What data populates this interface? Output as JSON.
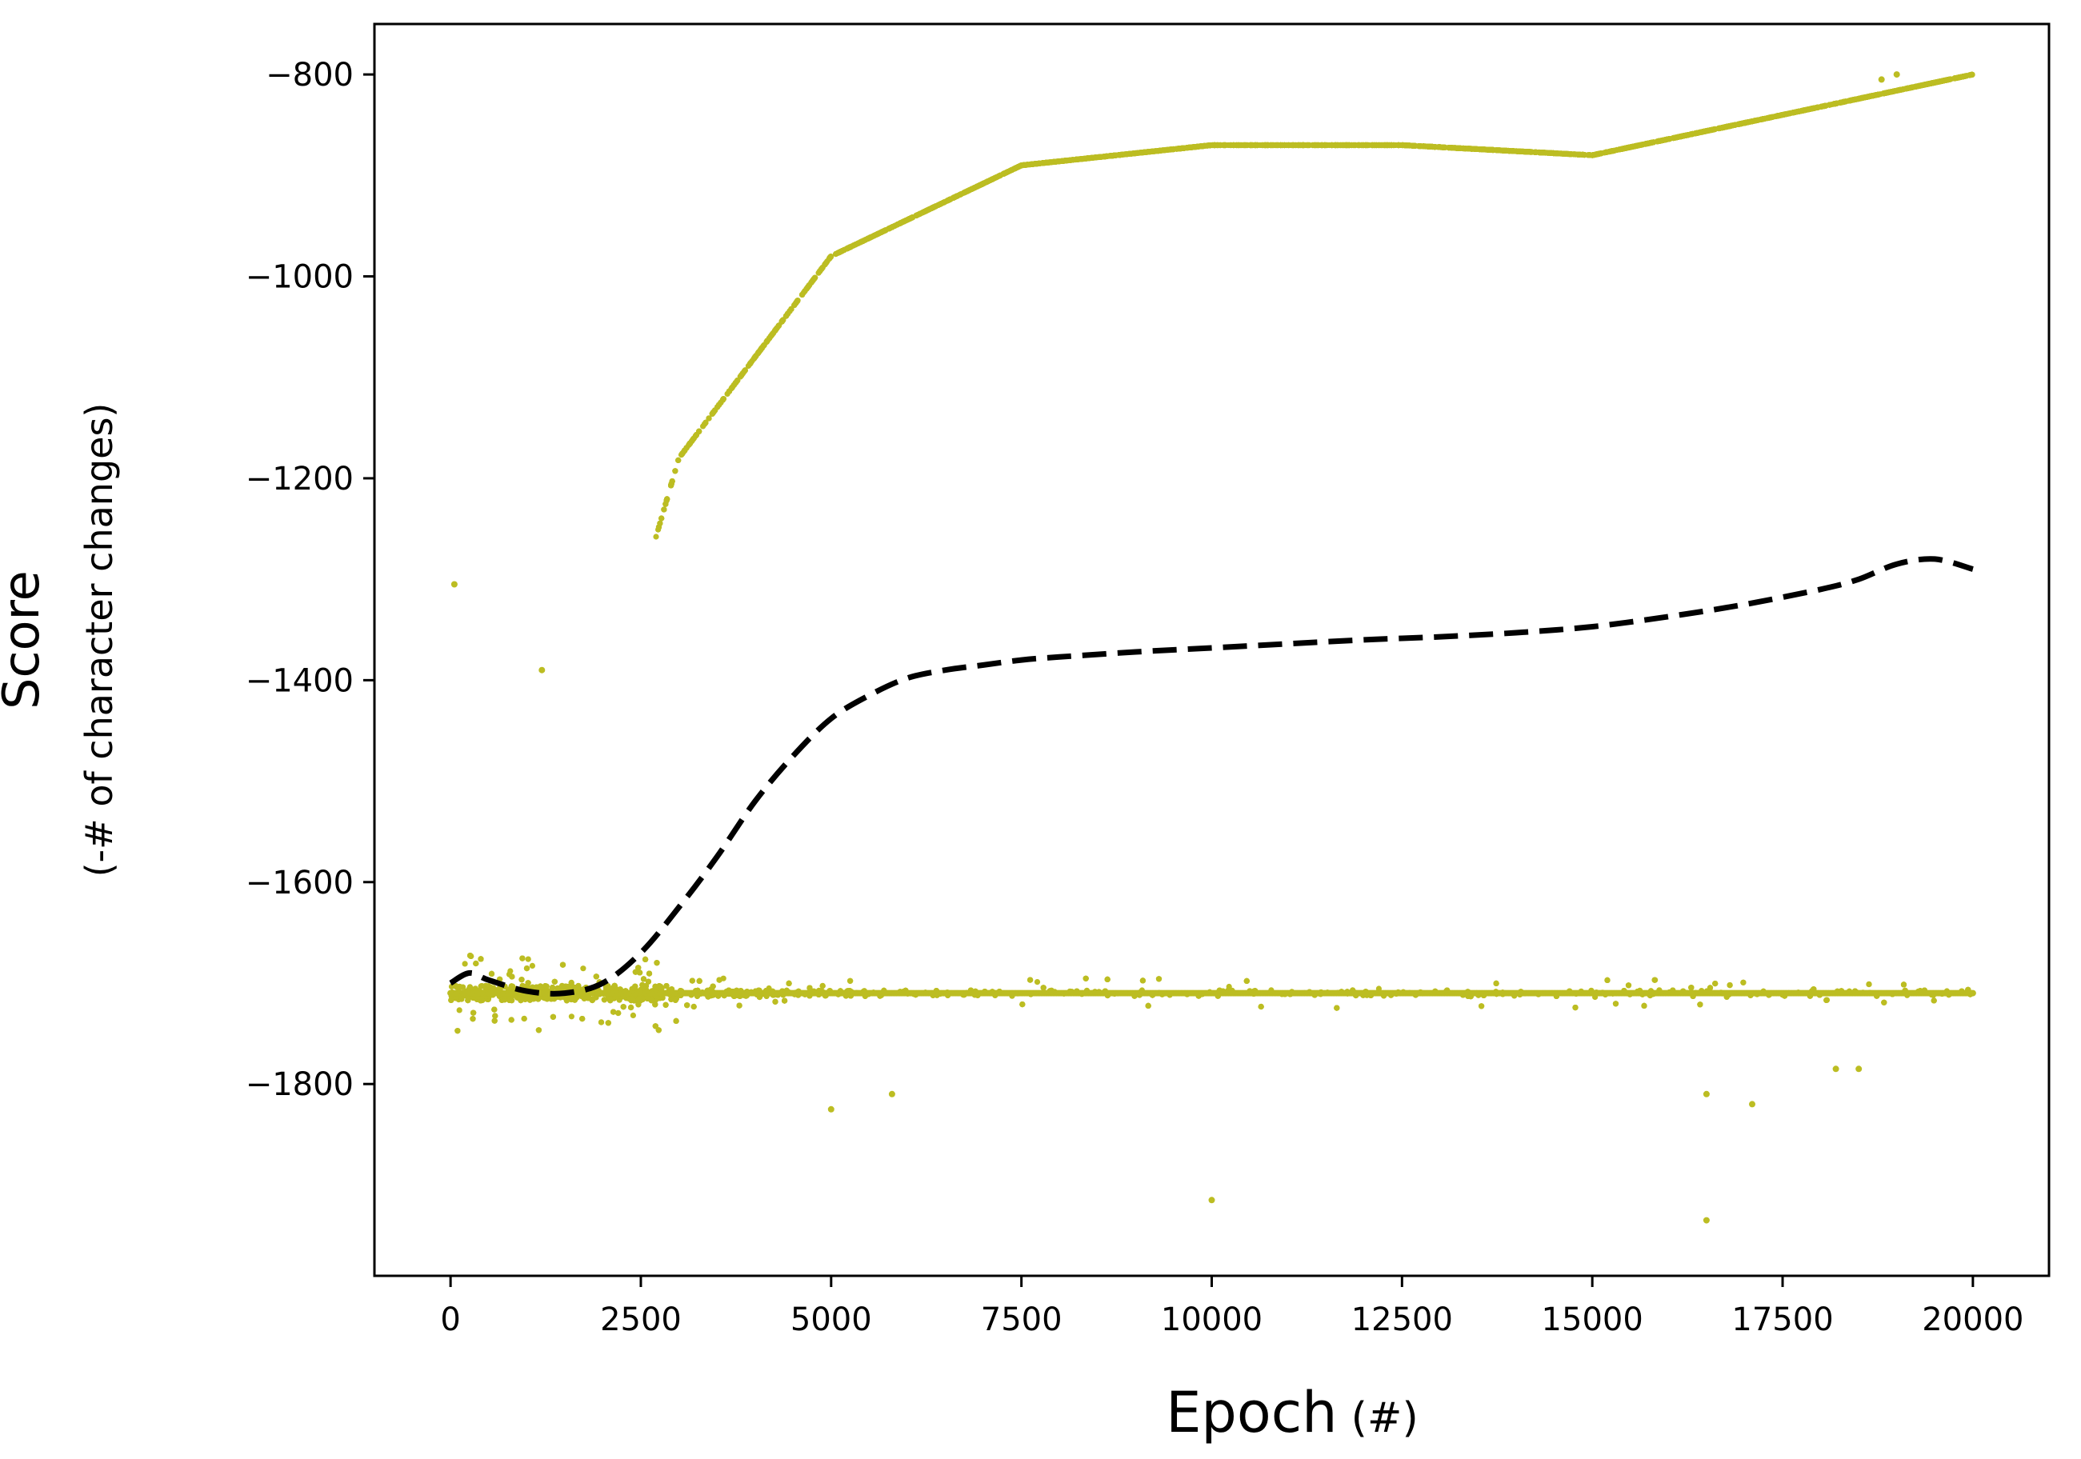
{
  "chart_data": {
    "type": "scatter",
    "xlabel": "Epoch",
    "xlabel_unit": "(#)",
    "ylabel": "Score",
    "ylabel_sub": "(-# of character changes)",
    "xlim": [
      -1000,
      21000
    ],
    "ylim": [
      -1990,
      -750
    ],
    "x_ticks": [
      0,
      2500,
      5000,
      7500,
      10000,
      12500,
      15000,
      17500,
      20000
    ],
    "y_ticks": [
      -800,
      -1000,
      -1200,
      -1400,
      -1600,
      -1800
    ],
    "x_tick_labels": [
      "0",
      "2500",
      "5000",
      "7500",
      "10000",
      "12500",
      "15000",
      "17500",
      "20000"
    ],
    "y_tick_labels": [
      "−800",
      "−1000",
      "−1200",
      "−1400",
      "−1600",
      "−1800"
    ],
    "grid": false,
    "legend": "none",
    "colors": {
      "points": "#bcbd22",
      "trend": "#000000",
      "axes": "#000000"
    },
    "series": [
      {
        "kind": "scatter",
        "n_points": 20000,
        "x_range": [
          0,
          20000
        ],
        "baseline": -1710,
        "distribution_by_epoch": [
          {
            "x": 0,
            "min": -1740,
            "max": -1300,
            "typical": -1700
          },
          {
            "x": 2500,
            "min": -1770,
            "max": -1310,
            "typical": -1690
          },
          {
            "x": 3000,
            "min": -1780,
            "max": -1180,
            "typical": -1640
          },
          {
            "x": 4000,
            "min": -1790,
            "max": -1080,
            "typical": -1550
          },
          {
            "x": 5000,
            "min": -1820,
            "max": -980,
            "typical": -1480
          },
          {
            "x": 7500,
            "min": -1760,
            "max": -890,
            "typical": -1390
          },
          {
            "x": 10000,
            "min": -1920,
            "max": -870,
            "typical": -1370
          },
          {
            "x": 12500,
            "min": -1730,
            "max": -870,
            "typical": -1355
          },
          {
            "x": 15000,
            "min": -1740,
            "max": -880,
            "typical": -1345
          },
          {
            "x": 17500,
            "min": -1930,
            "max": -840,
            "typical": -1320
          },
          {
            "x": 20000,
            "min": -1790,
            "max": -800,
            "typical": -1290
          }
        ],
        "outliers": [
          {
            "x": 50,
            "y": -1305
          },
          {
            "x": 1200,
            "y": -1390
          },
          {
            "x": 5000,
            "y": -1825
          },
          {
            "x": 5800,
            "y": -1810
          },
          {
            "x": 10000,
            "y": -1915
          },
          {
            "x": 16500,
            "y": -1810
          },
          {
            "x": 16500,
            "y": -1935
          },
          {
            "x": 17100,
            "y": -1820
          },
          {
            "x": 18200,
            "y": -1785
          },
          {
            "x": 18500,
            "y": -1785
          },
          {
            "x": 18800,
            "y": -805
          },
          {
            "x": 19000,
            "y": -800
          }
        ]
      },
      {
        "kind": "trend-line",
        "style": "dashed",
        "x": [
          0,
          250,
          500,
          1000,
          1500,
          2000,
          2500,
          3000,
          3500,
          4000,
          4500,
          5000,
          5500,
          6000,
          6500,
          7000,
          7500,
          8000,
          9000,
          10000,
          11000,
          12000,
          13000,
          14000,
          15000,
          16000,
          17000,
          18000,
          18500,
          19000,
          19500,
          20000
        ],
        "y": [
          -1700,
          -1690,
          -1697,
          -1708,
          -1710,
          -1700,
          -1670,
          -1625,
          -1575,
          -1520,
          -1475,
          -1438,
          -1415,
          -1398,
          -1390,
          -1385,
          -1380,
          -1377,
          -1372,
          -1368,
          -1364,
          -1360,
          -1357,
          -1353,
          -1347,
          -1337,
          -1325,
          -1310,
          -1300,
          -1285,
          -1280,
          -1290
        ]
      }
    ]
  }
}
